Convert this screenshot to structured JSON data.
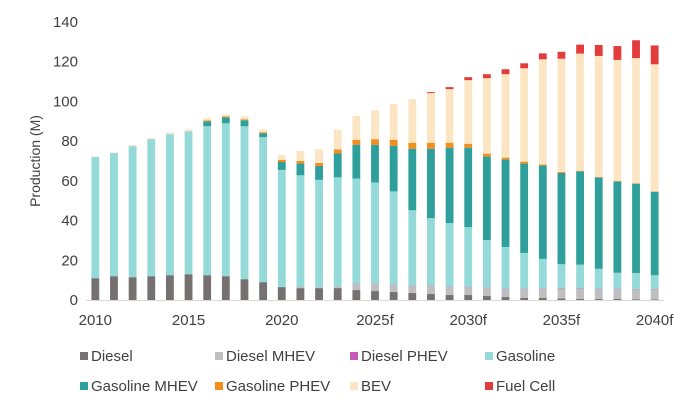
{
  "chart_data": {
    "type": "bar",
    "stacked": true,
    "title": "",
    "xlabel": "",
    "ylabel": "Production (M)",
    "ylim": [
      0,
      140
    ],
    "yticks": [
      0,
      20,
      40,
      60,
      80,
      100,
      120,
      140
    ],
    "grid": false,
    "legend_position": "bottom",
    "categories": [
      "2010",
      "2011",
      "2012",
      "2013",
      "2014",
      "2015",
      "2016",
      "2017",
      "2018",
      "2019",
      "2020",
      "2021",
      "2022",
      "2023",
      "2024",
      "2025f",
      "2026f",
      "2027f",
      "2028f",
      "2029f",
      "2030f",
      "2031f",
      "2032f",
      "2033f",
      "2034f",
      "2035f",
      "2036f",
      "2037f",
      "2038f",
      "2039f",
      "2040f"
    ],
    "x_tick_labels": [
      {
        "index": 0,
        "label": "2010"
      },
      {
        "index": 5,
        "label": "2015"
      },
      {
        "index": 10,
        "label": "2020"
      },
      {
        "index": 15,
        "label": "2025f"
      },
      {
        "index": 20,
        "label": "2030f"
      },
      {
        "index": 25,
        "label": "2035f"
      },
      {
        "index": 30,
        "label": "2040f"
      }
    ],
    "series": [
      {
        "name": "Diesel",
        "color": "#767171",
        "values": [
          11,
          12,
          11.5,
          12,
          12.5,
          13,
          12.5,
          12,
          10.5,
          9,
          6.5,
          6,
          6,
          6,
          5,
          4.5,
          4,
          3.5,
          3,
          2.5,
          2.5,
          2,
          1.5,
          1,
          1,
          0.8,
          0.6,
          0.5,
          0.5,
          0.4,
          0.3
        ]
      },
      {
        "name": "Diesel MHEV",
        "color": "#BFBFBF",
        "values": [
          0,
          0,
          0,
          0,
          0,
          0,
          0,
          0,
          0,
          0,
          0,
          0.8,
          0.5,
          0.8,
          3,
          3.5,
          3.5,
          3.5,
          4,
          4,
          4,
          4,
          4,
          4.5,
          4.5,
          5,
          5,
          5,
          5,
          5,
          5
        ]
      },
      {
        "name": "Diesel PHEV",
        "color": "#C55BBA",
        "values": [
          0,
          0,
          0,
          0,
          0,
          0,
          0,
          0,
          0,
          0,
          0,
          0,
          0,
          0,
          0.2,
          0.2,
          0.2,
          0.2,
          0.2,
          0.2,
          0.2,
          0.2,
          0.2,
          0.2,
          0.2,
          0.2,
          0.2,
          0.2,
          0.2,
          0.2,
          0.2
        ]
      },
      {
        "name": "Gasoline",
        "color": "#93DAD8",
        "values": [
          61,
          62,
          66,
          69,
          71,
          72,
          75,
          77,
          77,
          73,
          59,
          56,
          54,
          55,
          53,
          51,
          47,
          38,
          34,
          32,
          30,
          24,
          21,
          18,
          15,
          12,
          12,
          10,
          8,
          8,
          7
        ]
      },
      {
        "name": "Gasoline MHEV",
        "color": "#2F9F9C",
        "values": [
          0,
          0,
          0,
          0,
          0,
          0,
          2.5,
          3,
          3,
          2,
          4,
          6,
          7,
          12,
          17,
          19,
          23,
          31,
          35,
          38,
          40,
          42,
          44,
          45,
          47,
          46,
          47,
          46,
          46,
          45,
          42
        ]
      },
      {
        "name": "Gasoline PHEV",
        "color": "#F28E1C",
        "values": [
          0,
          0,
          0,
          0,
          0,
          0,
          0.5,
          0.5,
          0.5,
          0.5,
          1,
          1.2,
          1.5,
          2,
          2.5,
          2.8,
          3,
          3,
          3,
          2.5,
          2,
          1.5,
          1,
          1,
          0.5,
          0.5,
          0.3,
          0.2,
          0.2,
          0.2,
          0.2
        ]
      },
      {
        "name": "BEV",
        "color": "#FCE5C3",
        "values": [
          0.3,
          0.4,
          0.5,
          0.5,
          0.7,
          0.9,
          1,
          1,
          1.5,
          1.5,
          2.5,
          5,
          7,
          10,
          12,
          14.5,
          18,
          22,
          25,
          27,
          32,
          38,
          42,
          47,
          53,
          57,
          59,
          61,
          61,
          63,
          64
        ]
      },
      {
        "name": "Fuel Cell",
        "color": "#E23C3C",
        "values": [
          0,
          0,
          0,
          0,
          0,
          0,
          0,
          0,
          0,
          0,
          0,
          0,
          0,
          0,
          0,
          0,
          0,
          0,
          0.5,
          1,
          1.5,
          2,
          2.5,
          2.5,
          3,
          3.5,
          4.5,
          5.5,
          7,
          9,
          9.5
        ]
      }
    ]
  }
}
